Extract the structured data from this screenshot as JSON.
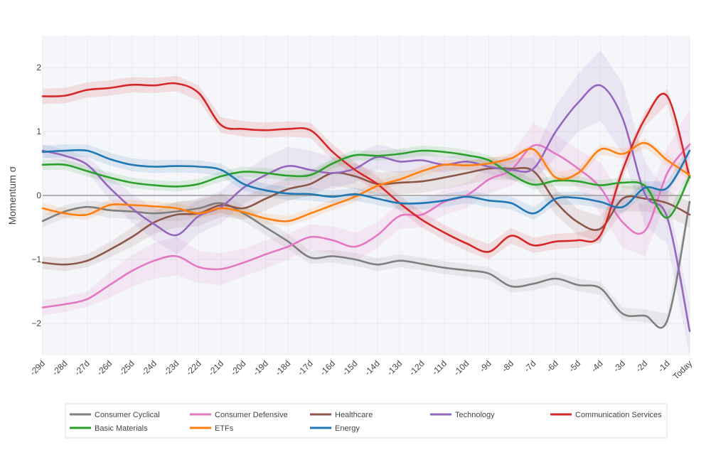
{
  "chart_data": {
    "type": "line",
    "title": "",
    "xlabel": "",
    "ylabel": "Momentum σ",
    "ylim": [
      -2.5,
      2.5
    ],
    "yticks": [
      2,
      1,
      0,
      -1,
      -2
    ],
    "ytick_labels": [
      "2",
      "1",
      "0",
      "−1",
      "−2"
    ],
    "categories": [
      "-29d",
      "-28d",
      "-27d",
      "-26d",
      "-25d",
      "-24d",
      "-23d",
      "-22d",
      "-21d",
      "-20d",
      "-19d",
      "-18d",
      "-17d",
      "-16d",
      "-15d",
      "-14d",
      "-13d",
      "-12d",
      "-11d",
      "-10d",
      "-9d",
      "-8d",
      "-7d",
      "-6d",
      "-5d",
      "-4d",
      "-3d",
      "-2d",
      "-1d",
      "Today"
    ],
    "zero_line": true,
    "bands_opacity": 0.12,
    "legend_position": "bottom",
    "series": [
      {
        "name": "Consumer Cyclical",
        "color": "#7f7f7f",
        "values": [
          -0.4,
          -0.25,
          -0.18,
          -0.23,
          -0.25,
          -0.28,
          -0.25,
          -0.2,
          -0.12,
          -0.28,
          -0.5,
          -0.72,
          -0.97,
          -0.95,
          -1.0,
          -1.08,
          -1.02,
          -1.07,
          -1.13,
          -1.17,
          -1.22,
          -1.42,
          -1.38,
          -1.3,
          -1.4,
          -1.45,
          -1.85,
          -1.88,
          -1.95,
          -0.1
        ],
        "band": [
          0.1,
          0.1,
          0.1,
          0.12,
          0.12,
          0.12,
          0.15,
          0.15,
          0.15,
          0.12,
          0.12,
          0.12,
          0.1,
          0.1,
          0.1,
          0.1,
          0.1,
          0.1,
          0.1,
          0.1,
          0.1,
          0.1,
          0.1,
          0.1,
          0.1,
          0.1,
          0.1,
          0.1,
          0.1,
          0.1
        ]
      },
      {
        "name": "Consumer Defensive",
        "color": "#e377c2",
        "values": [
          -1.75,
          -1.7,
          -1.62,
          -1.4,
          -1.18,
          -1.02,
          -0.95,
          -1.12,
          -1.15,
          -1.05,
          -0.92,
          -0.8,
          -0.65,
          -0.7,
          -0.8,
          -0.62,
          -0.32,
          -0.3,
          -0.1,
          0.0,
          0.25,
          0.4,
          0.78,
          0.65,
          0.42,
          0.12,
          -0.42,
          -0.55,
          0.35,
          0.8
        ],
        "band": [
          0.12,
          0.12,
          0.12,
          0.2,
          0.25,
          0.28,
          0.3,
          0.25,
          0.25,
          0.22,
          0.22,
          0.2,
          0.2,
          0.22,
          0.22,
          0.2,
          0.2,
          0.2,
          0.2,
          0.2,
          0.22,
          0.25,
          0.35,
          0.3,
          0.3,
          0.4,
          0.4,
          0.4,
          0.4,
          0.55
        ]
      },
      {
        "name": "Healthcare",
        "color": "#8c564b",
        "values": [
          -1.05,
          -1.08,
          -1.02,
          -0.85,
          -0.65,
          -0.42,
          -0.3,
          -0.28,
          -0.15,
          -0.2,
          -0.05,
          0.1,
          0.18,
          0.35,
          0.3,
          0.18,
          0.2,
          0.22,
          0.28,
          0.35,
          0.42,
          0.42,
          0.38,
          -0.1,
          -0.42,
          -0.52,
          -0.05,
          -0.05,
          -0.12,
          -0.3
        ],
        "band": [
          0.1,
          0.1,
          0.1,
          0.12,
          0.15,
          0.18,
          0.2,
          0.2,
          0.18,
          0.18,
          0.18,
          0.18,
          0.18,
          0.2,
          0.2,
          0.18,
          0.18,
          0.18,
          0.18,
          0.18,
          0.18,
          0.18,
          0.2,
          0.2,
          0.2,
          0.2,
          0.2,
          0.2,
          0.2,
          0.2
        ]
      },
      {
        "name": "Technology",
        "color": "#9467bd",
        "values": [
          0.7,
          0.62,
          0.48,
          0.12,
          -0.2,
          -0.45,
          -0.62,
          -0.32,
          -0.18,
          0.12,
          0.32,
          0.46,
          0.4,
          0.35,
          0.42,
          0.6,
          0.53,
          0.55,
          0.48,
          0.53,
          0.45,
          0.4,
          0.42,
          1.0,
          1.45,
          1.72,
          1.2,
          0.02,
          -0.35,
          -2.12
        ],
        "band": [
          0.1,
          0.1,
          0.12,
          0.18,
          0.22,
          0.25,
          0.3,
          0.28,
          0.25,
          0.25,
          0.28,
          0.3,
          0.3,
          0.25,
          0.22,
          0.2,
          0.18,
          0.15,
          0.12,
          0.12,
          0.12,
          0.15,
          0.2,
          0.4,
          0.45,
          0.55,
          0.55,
          0.5,
          0.4,
          0.4
        ]
      },
      {
        "name": "Communication Services",
        "color": "#d62728",
        "values": [
          1.55,
          1.56,
          1.65,
          1.68,
          1.73,
          1.72,
          1.75,
          1.6,
          1.1,
          1.04,
          1.02,
          1.04,
          1.02,
          0.68,
          0.4,
          0.18,
          -0.12,
          -0.38,
          -0.58,
          -0.75,
          -0.88,
          -0.63,
          -0.78,
          -0.72,
          -0.7,
          -0.62,
          0.4,
          1.2,
          1.55,
          0.28
        ],
        "band": [
          0.12,
          0.12,
          0.12,
          0.12,
          0.12,
          0.12,
          0.12,
          0.12,
          0.12,
          0.12,
          0.12,
          0.12,
          0.12,
          0.12,
          0.12,
          0.12,
          0.12,
          0.12,
          0.12,
          0.12,
          0.12,
          0.12,
          0.12,
          0.12,
          0.12,
          0.12,
          0.12,
          0.12,
          0.12,
          0.12
        ]
      },
      {
        "name": "Basic Materials",
        "color": "#2ca02c",
        "values": [
          0.48,
          0.48,
          0.38,
          0.28,
          0.2,
          0.16,
          0.14,
          0.18,
          0.3,
          0.37,
          0.35,
          0.31,
          0.32,
          0.5,
          0.63,
          0.62,
          0.65,
          0.7,
          0.68,
          0.63,
          0.55,
          0.33,
          0.17,
          0.23,
          0.22,
          0.16,
          0.2,
          0.15,
          -0.35,
          0.3
        ],
        "band": [
          0.08,
          0.08,
          0.08,
          0.08,
          0.08,
          0.08,
          0.08,
          0.08,
          0.08,
          0.08,
          0.08,
          0.08,
          0.08,
          0.08,
          0.08,
          0.08,
          0.08,
          0.08,
          0.08,
          0.08,
          0.08,
          0.08,
          0.08,
          0.08,
          0.08,
          0.08,
          0.08,
          0.08,
          0.08,
          0.08
        ]
      },
      {
        "name": "ETFs",
        "color": "#ff7f0e",
        "values": [
          -0.2,
          -0.28,
          -0.3,
          -0.15,
          -0.15,
          -0.17,
          -0.2,
          -0.28,
          -0.2,
          -0.26,
          -0.36,
          -0.4,
          -0.28,
          -0.15,
          -0.02,
          0.15,
          0.25,
          0.38,
          0.48,
          0.47,
          0.5,
          0.58,
          0.72,
          0.28,
          0.35,
          0.72,
          0.65,
          0.82,
          0.55,
          0.32
        ],
        "band": [
          0.08,
          0.08,
          0.08,
          0.08,
          0.08,
          0.08,
          0.08,
          0.08,
          0.08,
          0.08,
          0.08,
          0.08,
          0.08,
          0.08,
          0.08,
          0.08,
          0.08,
          0.08,
          0.08,
          0.08,
          0.08,
          0.08,
          0.08,
          0.08,
          0.08,
          0.08,
          0.08,
          0.08,
          0.08,
          0.08
        ]
      },
      {
        "name": "Energy",
        "color": "#1f77b4",
        "values": [
          0.68,
          0.7,
          0.7,
          0.57,
          0.48,
          0.45,
          0.46,
          0.45,
          0.4,
          0.18,
          0.08,
          0.03,
          0.02,
          -0.02,
          0.02,
          -0.05,
          -0.12,
          -0.12,
          -0.08,
          -0.02,
          -0.08,
          -0.12,
          -0.28,
          -0.05,
          -0.04,
          -0.1,
          -0.18,
          0.12,
          0.12,
          0.7
        ],
        "band": [
          0.1,
          0.1,
          0.1,
          0.1,
          0.1,
          0.1,
          0.1,
          0.1,
          0.1,
          0.1,
          0.1,
          0.1,
          0.1,
          0.1,
          0.1,
          0.1,
          0.1,
          0.1,
          0.1,
          0.1,
          0.1,
          0.1,
          0.1,
          0.1,
          0.1,
          0.1,
          0.1,
          0.1,
          0.1,
          0.1
        ]
      }
    ],
    "legend_order": [
      "Consumer Cyclical",
      "Consumer Defensive",
      "Healthcare",
      "Technology",
      "Communication Services",
      "Basic Materials",
      "ETFs",
      "Energy"
    ]
  }
}
